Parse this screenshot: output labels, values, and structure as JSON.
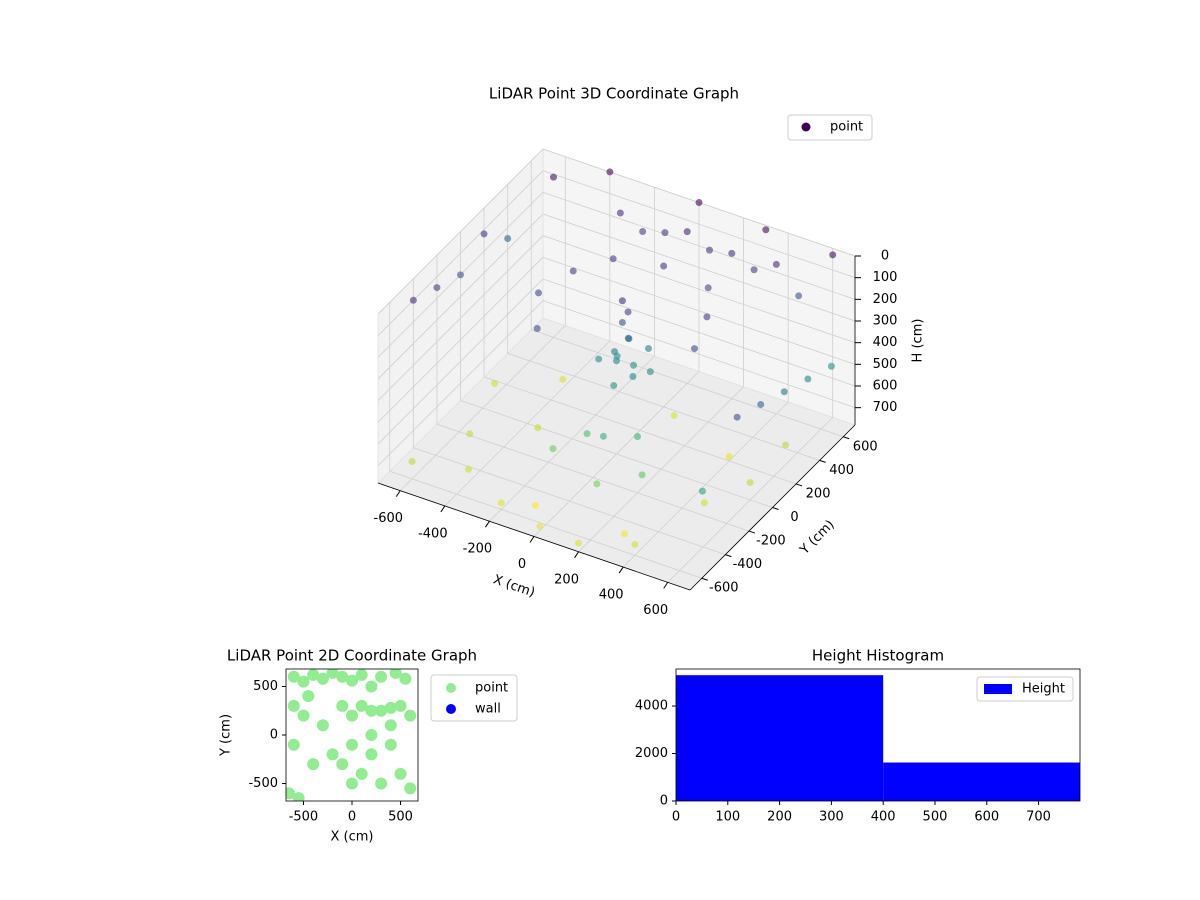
{
  "chart_data": [
    {
      "type": "scatter3d",
      "title": "LiDAR Point 3D Coordinate Graph",
      "xlabel": "X (cm)",
      "ylabel": "Y (cm)",
      "zlabel": "H (cm)",
      "xlim": [
        -700,
        700
      ],
      "ylim": [
        -700,
        700
      ],
      "zlim": [
        0,
        780
      ],
      "invert_z": true,
      "xticks": [
        -600,
        -400,
        -200,
        0,
        200,
        400,
        600
      ],
      "yticks": [
        -600,
        -400,
        -200,
        0,
        200,
        400,
        600
      ],
      "zticks": [
        0,
        100,
        200,
        300,
        400,
        500,
        600,
        700
      ],
      "grid": true,
      "legend": "upper right",
      "cmap": "viridis",
      "series": [
        {
          "name": "point",
          "color": "#440154",
          "x": [
            -300,
            -200,
            -100,
            0,
            100,
            200,
            300,
            400,
            500,
            -700,
            -700,
            -700,
            -700,
            -700,
            700,
            700,
            700,
            700,
            700,
            650,
            0,
            50,
            -50,
            100,
            0,
            80,
            -80,
            30,
            120,
            -30,
            0,
            20,
            0,
            40,
            -300,
            -200,
            0,
            200,
            300,
            350,
            -350,
            -250,
            100,
            0,
            200,
            -100,
            300,
            150,
            -600,
            -400,
            -200,
            0,
            200,
            400,
            -500,
            -300,
            500,
            600,
            600,
            -600,
            400,
            -100,
            300,
            -400,
            100,
            -400,
            0,
            300,
            600,
            -600
          ],
          "y": [
            600,
            600,
            600,
            600,
            600,
            600,
            600,
            600,
            600,
            -400,
            -200,
            0,
            200,
            400,
            -300,
            -100,
            100,
            300,
            500,
            -500,
            0,
            50,
            100,
            -50,
            100,
            120,
            0,
            -80,
            60,
            40,
            50,
            60,
            50,
            30,
            200,
            350,
            400,
            400,
            200,
            0,
            0,
            -200,
            -300,
            -250,
            -200,
            -350,
            -350,
            -450,
            -600,
            -500,
            -600,
            -650,
            -700,
            -600,
            -300,
            -100,
            -200,
            0,
            300,
            100,
            200,
            -500,
            -500,
            300,
            300,
            700,
            700,
            700,
            700,
            600
          ],
          "z": [
            100,
            150,
            120,
            80,
            130,
            110,
            150,
            90,
            200,
            100,
            150,
            200,
            120,
            250,
            200,
            250,
            300,
            350,
            400,
            450,
            350,
            380,
            400,
            360,
            300,
            330,
            370,
            410,
            390,
            340,
            200,
            150,
            100,
            250,
            150,
            140,
            130,
            160,
            150,
            170,
            160,
            180,
            500,
            550,
            520,
            600,
            580,
            620,
            700,
            720,
            750,
            760,
            740,
            730,
            700,
            710,
            720,
            700,
            690,
            720,
            760,
            780,
            770,
            740,
            730,
            0,
            0,
            20,
            30,
            40
          ]
        }
      ]
    },
    {
      "type": "scatter",
      "title": "LiDAR Point 2D Coordinate Graph",
      "xlabel": "X (cm)",
      "ylabel": "Y (cm)",
      "xlim": [
        -680,
        680
      ],
      "ylim": [
        -680,
        680
      ],
      "xticks": [
        -500,
        0,
        500
      ],
      "yticks": [
        -500,
        0,
        500
      ],
      "legend": "outside right",
      "series": [
        {
          "name": "point",
          "color": "#90ee90",
          "x": [
            -600,
            -500,
            -400,
            -300,
            -200,
            -100,
            0,
            100,
            200,
            300,
            450,
            550,
            -600,
            -500,
            -450,
            -600,
            -650,
            -550,
            -400,
            -200,
            -300,
            -100,
            0,
            100,
            200,
            300,
            400,
            500,
            600,
            -100,
            0,
            100,
            200,
            300,
            400,
            500,
            600,
            0,
            200,
            400
          ],
          "y": [
            600,
            550,
            620,
            580,
            640,
            600,
            560,
            620,
            500,
            600,
            640,
            580,
            300,
            200,
            400,
            -100,
            -600,
            -650,
            -300,
            -200,
            100,
            300,
            200,
            300,
            250,
            250,
            280,
            300,
            200,
            -300,
            -100,
            -400,
            -200,
            -500,
            -100,
            -400,
            -550,
            -500,
            0,
            100
          ]
        },
        {
          "name": "wall",
          "color": "#0000ff",
          "x": [],
          "y": []
        }
      ]
    },
    {
      "type": "histogram",
      "title": "Height Histogram",
      "bins": [
        0,
        400,
        780
      ],
      "values": [
        5300,
        1620
      ],
      "series_name": "Height",
      "color": "#0000ff",
      "legend": "upper right",
      "xlim": [
        0,
        780
      ],
      "ylim": [
        0,
        5560
      ],
      "xticks": [
        0,
        100,
        200,
        300,
        400,
        500,
        600,
        700
      ],
      "yticks": [
        0,
        2000,
        4000
      ]
    }
  ]
}
